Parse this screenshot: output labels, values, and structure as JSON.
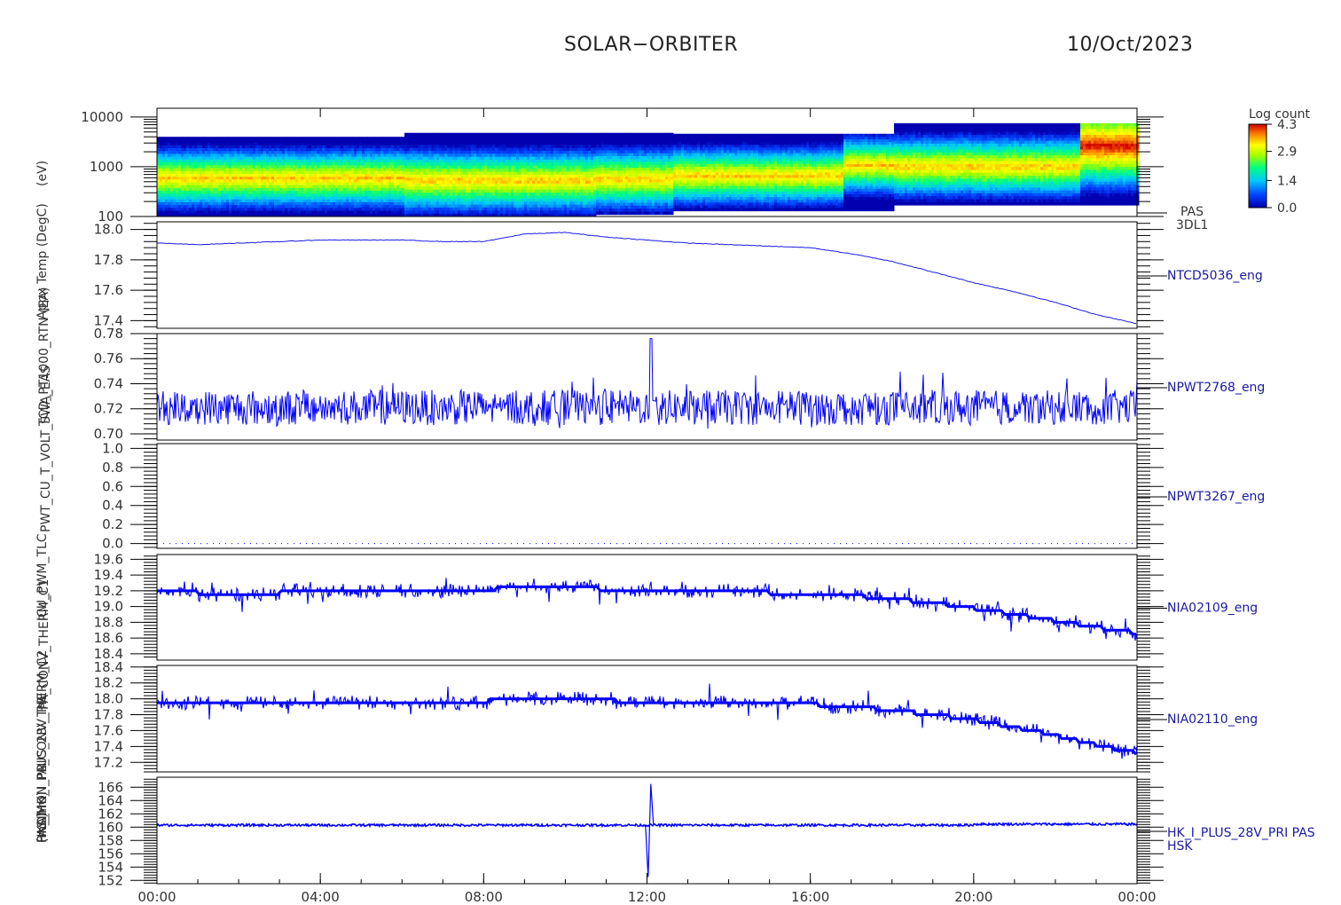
{
  "header": {
    "mission": "SOLAR−ORBITER",
    "date": "10/Oct/2023"
  },
  "y_axis_labels": [
    "(eV)",
    "Appx Temp (DegC)",
    "TCD_PT1000_RTN (EA)",
    "PWT_CU_T_VOLT_SWA_EAS",
    "ICU_PWM_TLC",
    "PA_CONV_THERM_C1",
    "PA_CONV_THERM_C2",
    "PAS_HK_I_PLUS_28V_PRI",
    "(mA)",
    "(mOhm)",
    "HK_IMON_PRI"
  ],
  "chart_data": [
    {
      "type": "heatmap",
      "name": "PAS 3DL1",
      "label_lines": [
        "PAS",
        "3DL1"
      ],
      "ylabel": "(eV)",
      "yscale": "log",
      "ylim": [
        100,
        15000
      ],
      "yticks": [
        "100",
        "1000",
        "10000"
      ],
      "colorbar": {
        "title": "Log count",
        "ticks": [
          "0.0",
          "1.4",
          "2.9",
          "4.3"
        ],
        "range": [
          0.0,
          4.3
        ]
      },
      "bands": [
        {
          "x": [
            0,
            6
          ],
          "ymin": 100,
          "ymax": 4000,
          "peak_energy": 580
        },
        {
          "x": [
            6,
            10.7
          ],
          "ymin": 100,
          "ymax": 4800,
          "peak_energy": 520
        },
        {
          "x": [
            10.7,
            12.6
          ],
          "ymin": 110,
          "ymax": 4800,
          "peak_energy": 560
        },
        {
          "x": [
            12.6,
            16.8
          ],
          "ymin": 130,
          "ymax": 4600,
          "peak_energy": 650
        },
        {
          "x": [
            16.8,
            18
          ],
          "ymin": 130,
          "ymax": 4600,
          "peak_energy": 1050
        },
        {
          "x": [
            18,
            22.6
          ],
          "ymin": 170,
          "ymax": 7500,
          "peak_energy": 1000
        },
        {
          "x": [
            22.6,
            24
          ],
          "ymin": 170,
          "ymax": 7500,
          "peak_energy": 2600,
          "intense": true
        }
      ]
    },
    {
      "type": "line",
      "name": "NTCD5036_eng",
      "ylabel": "Appx Temp (DegC)",
      "ylim": [
        17.35,
        18.05
      ],
      "yticks": [
        "17.4",
        "17.6",
        "17.8",
        "18.0"
      ],
      "x": [
        0,
        1,
        2,
        3,
        4,
        5,
        6,
        7,
        8,
        9,
        10,
        11,
        12,
        13,
        14,
        15,
        16,
        17,
        18,
        19,
        20,
        21,
        22,
        23,
        24
      ],
      "values": [
        17.91,
        17.9,
        17.91,
        17.92,
        17.93,
        17.93,
        17.93,
        17.92,
        17.92,
        17.97,
        17.98,
        17.95,
        17.93,
        17.91,
        17.9,
        17.89,
        17.88,
        17.84,
        17.79,
        17.72,
        17.65,
        17.59,
        17.52,
        17.44,
        17.38
      ],
      "color": "#1a1ae6"
    },
    {
      "type": "line",
      "name": "NPWT2768_eng",
      "ylabel": "TCD_PT1000_RTN (EA)",
      "ylim": [
        0.695,
        0.78
      ],
      "yticks": [
        "0.70",
        "0.72",
        "0.74",
        "0.76",
        "0.78"
      ],
      "noise": {
        "mean": 0.721,
        "amplitude": 0.014,
        "spike_at": 12.1,
        "spike_value": 0.776
      },
      "color": "#0000ff"
    },
    {
      "type": "line",
      "name": "NPWT3267_eng",
      "ylabel": "PWT_CU_T_VOLT_SWA_EAS",
      "ylim": [
        -0.05,
        1.05
      ],
      "yticks": [
        "0.0",
        "0.2",
        "0.4",
        "0.6",
        "0.8",
        "1.0"
      ],
      "constant": 0.0,
      "color": "#0000ff"
    },
    {
      "type": "line",
      "name": "NIA02109_eng",
      "ylabel": "PA_CONV_THERM_C1",
      "ylim": [
        18.32,
        19.66
      ],
      "yticks": [
        "18.4",
        "18.6",
        "18.8",
        "19.0",
        "19.2",
        "19.4",
        "19.6"
      ],
      "x": [
        0,
        2,
        4,
        6,
        8,
        9,
        10,
        11,
        12,
        14,
        16,
        17,
        18,
        19,
        20,
        21,
        22,
        23,
        24
      ],
      "values": [
        19.18,
        19.17,
        19.18,
        19.19,
        19.21,
        19.26,
        19.25,
        19.22,
        19.19,
        19.18,
        19.17,
        19.14,
        19.1,
        19.05,
        18.98,
        18.9,
        18.82,
        18.74,
        18.66
      ],
      "color": "#0000ff"
    },
    {
      "type": "line",
      "name": "NIA02110_eng",
      "ylabel": "PA_CONV_THERM_C2",
      "ylim": [
        17.08,
        18.42
      ],
      "yticks": [
        "17.2",
        "17.4",
        "17.6",
        "17.8",
        "18.0",
        "18.2",
        "18.4"
      ],
      "x": [
        0,
        2,
        4,
        6,
        8,
        9,
        10,
        11,
        12,
        14,
        16,
        17,
        18,
        19,
        20,
        21,
        22,
        23,
        24
      ],
      "values": [
        17.94,
        17.93,
        17.94,
        17.95,
        17.97,
        18.02,
        18.01,
        17.98,
        17.96,
        17.95,
        17.93,
        17.9,
        17.86,
        17.8,
        17.74,
        17.64,
        17.54,
        17.42,
        17.32
      ],
      "color": "#0000ff"
    },
    {
      "type": "line",
      "name": "HK_I_PLUS_28V_PRI PAS HSK",
      "label_lines": [
        "HK_I_PLUS_28V_PRI PAS",
        "HSK"
      ],
      "ylabel": "(mA)",
      "ylim": [
        151.5,
        167.5
      ],
      "yticks": [
        "152",
        "154",
        "156",
        "158",
        "160",
        "162",
        "164",
        "166"
      ],
      "baseline": 160.3,
      "spike": {
        "at": 12.05,
        "min": 152.5,
        "max": 166.5
      },
      "color": "#0000ff"
    }
  ],
  "x_axis": {
    "range": [
      0,
      24
    ],
    "ticks": [
      "00:00",
      "04:00",
      "08:00",
      "12:00",
      "16:00",
      "20:00",
      "00:00"
    ]
  }
}
